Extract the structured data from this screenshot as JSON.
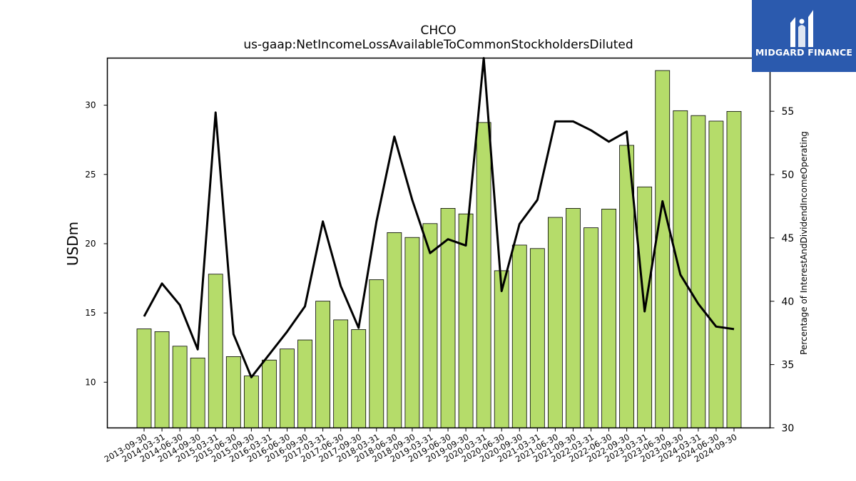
{
  "header": {
    "title": "CHCO",
    "subtitle": "us-gaap:NetIncomeLossAvailableToCommonStockholdersDiluted"
  },
  "logo": {
    "text": "MIDGARD FINANCE"
  },
  "colors": {
    "bar": "#b5dc6a",
    "bar_edge": "#000000",
    "line": "#000000"
  },
  "chart_data": {
    "type": "bar",
    "title": "CHCO",
    "subtitle": "us-gaap:NetIncomeLossAvailableToCommonStockholdersDiluted",
    "ylabel": "USDm",
    "y2label": "Percentage of InterestAndDividendIncomeOperating",
    "ylim": [
      6.7,
      33.4
    ],
    "y2lim": [
      30,
      59.2
    ],
    "yticks": [
      10,
      15,
      20,
      25,
      30
    ],
    "y2ticks": [
      30,
      35,
      40,
      45,
      50,
      55
    ],
    "grid": false,
    "categories": [
      "2013-09-30",
      "2014-03-31",
      "2014-06-30",
      "2014-09-30",
      "2015-03-31",
      "2015-06-30",
      "2015-09-30",
      "2016-03-31",
      "2016-06-30",
      "2016-09-30",
      "2017-03-31",
      "2017-06-30",
      "2017-09-30",
      "2018-03-31",
      "2018-06-30",
      "2018-09-30",
      "2019-03-31",
      "2019-06-30",
      "2019-09-30",
      "2020-03-31",
      "2020-06-30",
      "2020-09-30",
      "2021-03-31",
      "2021-06-30",
      "2021-09-30",
      "2022-03-31",
      "2022-06-30",
      "2022-09-30",
      "2023-03-31",
      "2023-06-30",
      "2023-09-30",
      "2024-03-31",
      "2024-06-30",
      "2024-09-30"
    ],
    "series": [
      {
        "type": "bar",
        "axis": "left",
        "values": [
          13.85,
          13.65,
          12.6,
          11.75,
          17.8,
          11.85,
          10.45,
          11.6,
          12.4,
          13.05,
          15.85,
          14.5,
          13.8,
          17.4,
          20.8,
          20.45,
          21.45,
          22.55,
          22.15,
          28.75,
          18.05,
          19.9,
          19.65,
          21.9,
          22.55,
          21.15,
          22.5,
          27.1,
          24.1,
          32.5,
          29.6,
          29.25,
          28.85,
          29.55
        ]
      },
      {
        "type": "line",
        "axis": "right",
        "values": [
          38.8,
          41.4,
          39.7,
          36.2,
          54.9,
          37.4,
          34.0,
          35.8,
          37.6,
          39.6,
          46.3,
          41.2,
          37.9,
          46.3,
          53.0,
          48.0,
          43.8,
          44.9,
          44.4,
          59.5,
          40.8,
          46.1,
          48.0,
          54.2,
          54.2,
          53.5,
          52.6,
          53.4,
          39.2,
          47.9,
          42.1,
          39.8,
          38.0,
          37.8
        ]
      }
    ]
  }
}
